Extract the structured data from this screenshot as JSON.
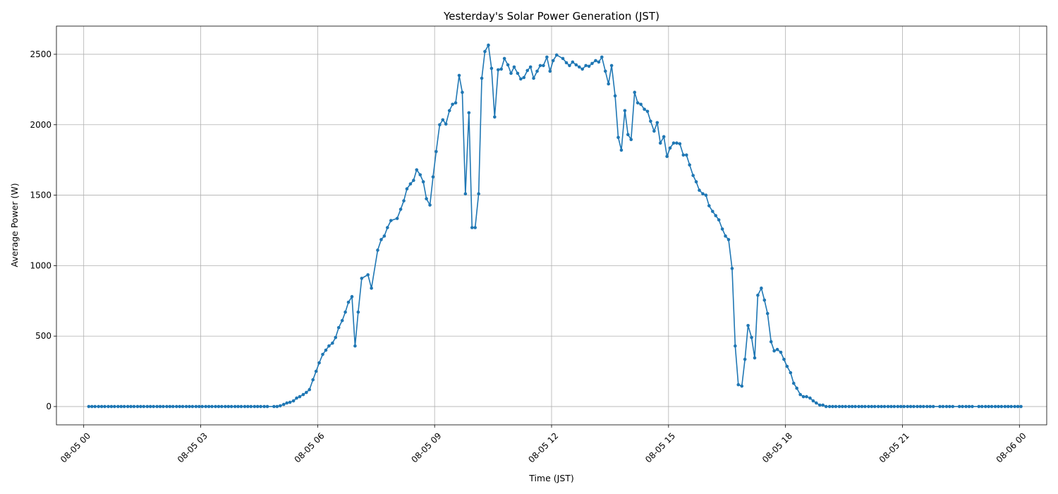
{
  "chart_data": {
    "type": "line",
    "title": "Yesterday's Solar Power Generation (JST)",
    "xlabel": "Time (JST)",
    "ylabel": "Average Power (W)",
    "xlim_hours": [
      -0.7,
      24.7
    ],
    "ylim": [
      -130,
      2700
    ],
    "grid": true,
    "x_ticks": [
      {
        "hours": 0,
        "label": "08-05 00"
      },
      {
        "hours": 3,
        "label": "08-05 03"
      },
      {
        "hours": 6,
        "label": "08-05 06"
      },
      {
        "hours": 9,
        "label": "08-05 09"
      },
      {
        "hours": 12,
        "label": "08-05 12"
      },
      {
        "hours": 15,
        "label": "08-05 15"
      },
      {
        "hours": 18,
        "label": "08-05 18"
      },
      {
        "hours": 21,
        "label": "08-05 21"
      },
      {
        "hours": 24,
        "label": "08-06 00"
      }
    ],
    "y_ticks": [
      0,
      500,
      1000,
      1500,
      2000,
      2500
    ],
    "series": [
      {
        "name": "Average Power (W)",
        "color": "#1f77b4",
        "points": [
          [
            0.13,
            0
          ],
          [
            0.21,
            0
          ],
          [
            0.29,
            0
          ],
          [
            0.38,
            0
          ],
          [
            0.46,
            0
          ],
          [
            0.54,
            0
          ],
          [
            0.63,
            0
          ],
          [
            0.71,
            0
          ],
          [
            0.79,
            0
          ],
          [
            0.88,
            0
          ],
          [
            0.96,
            0
          ],
          [
            1.04,
            0
          ],
          [
            1.13,
            0
          ],
          [
            1.21,
            0
          ],
          [
            1.29,
            0
          ],
          [
            1.38,
            0
          ],
          [
            1.46,
            0
          ],
          [
            1.54,
            0
          ],
          [
            1.63,
            0
          ],
          [
            1.71,
            0
          ],
          [
            1.79,
            0
          ],
          [
            1.88,
            0
          ],
          [
            1.96,
            0
          ],
          [
            2.04,
            0
          ],
          [
            2.13,
            0
          ],
          [
            2.21,
            0
          ],
          [
            2.29,
            0
          ],
          [
            2.38,
            0
          ],
          [
            2.46,
            0
          ],
          [
            2.54,
            0
          ],
          [
            2.63,
            0
          ],
          [
            2.71,
            0
          ],
          [
            2.79,
            0
          ],
          [
            2.88,
            0
          ],
          [
            2.96,
            0
          ],
          [
            3.04,
            0
          ],
          [
            3.13,
            0
          ],
          [
            3.21,
            0
          ],
          [
            3.29,
            0
          ],
          [
            3.38,
            0
          ],
          [
            3.46,
            0
          ],
          [
            3.54,
            0
          ],
          [
            3.63,
            0
          ],
          [
            3.71,
            0
          ],
          [
            3.79,
            0
          ],
          [
            3.88,
            0
          ],
          [
            3.96,
            0
          ],
          [
            4.04,
            0
          ],
          [
            4.13,
            0
          ],
          [
            4.21,
            0
          ],
          [
            4.29,
            0
          ],
          [
            4.38,
            0
          ],
          [
            4.46,
            0
          ],
          [
            4.54,
            0
          ],
          [
            4.63,
            0
          ],
          [
            4.71,
            0
          ],
          [
            4.88,
            0
          ],
          [
            4.96,
            0
          ],
          [
            5.04,
            5
          ],
          [
            5.13,
            15
          ],
          [
            5.21,
            25
          ],
          [
            5.29,
            30
          ],
          [
            5.38,
            40
          ],
          [
            5.46,
            60
          ],
          [
            5.54,
            70
          ],
          [
            5.63,
            85
          ],
          [
            5.71,
            100
          ],
          [
            5.79,
            120
          ],
          [
            5.88,
            190
          ],
          [
            5.96,
            250
          ],
          [
            6.04,
            310
          ],
          [
            6.13,
            370
          ],
          [
            6.21,
            400
          ],
          [
            6.29,
            430
          ],
          [
            6.38,
            450
          ],
          [
            6.46,
            490
          ],
          [
            6.54,
            560
          ],
          [
            6.63,
            610
          ],
          [
            6.71,
            670
          ],
          [
            6.79,
            740
          ],
          [
            6.88,
            780
          ],
          [
            6.96,
            430
          ],
          [
            7.04,
            670
          ],
          [
            7.13,
            910
          ],
          [
            7.29,
            935
          ],
          [
            7.38,
            840
          ],
          [
            7.54,
            1110
          ],
          [
            7.63,
            1185
          ],
          [
            7.71,
            1210
          ],
          [
            7.79,
            1270
          ],
          [
            7.88,
            1320
          ],
          [
            8.04,
            1335
          ],
          [
            8.13,
            1400
          ],
          [
            8.21,
            1460
          ],
          [
            8.29,
            1545
          ],
          [
            8.38,
            1580
          ],
          [
            8.46,
            1605
          ],
          [
            8.54,
            1680
          ],
          [
            8.63,
            1645
          ],
          [
            8.71,
            1595
          ],
          [
            8.79,
            1475
          ],
          [
            8.88,
            1430
          ],
          [
            8.96,
            1630
          ],
          [
            9.04,
            1810
          ],
          [
            9.13,
            2000
          ],
          [
            9.21,
            2035
          ],
          [
            9.29,
            2005
          ],
          [
            9.38,
            2100
          ],
          [
            9.46,
            2145
          ],
          [
            9.54,
            2155
          ],
          [
            9.63,
            2350
          ],
          [
            9.71,
            2230
          ],
          [
            9.79,
            1510
          ],
          [
            9.88,
            2085
          ],
          [
            9.96,
            1270
          ],
          [
            10.04,
            1270
          ],
          [
            10.13,
            1510
          ],
          [
            10.21,
            2330
          ],
          [
            10.29,
            2520
          ],
          [
            10.38,
            2565
          ],
          [
            10.46,
            2400
          ],
          [
            10.54,
            2055
          ],
          [
            10.63,
            2390
          ],
          [
            10.71,
            2395
          ],
          [
            10.79,
            2470
          ],
          [
            10.88,
            2425
          ],
          [
            10.96,
            2365
          ],
          [
            11.04,
            2410
          ],
          [
            11.13,
            2365
          ],
          [
            11.21,
            2325
          ],
          [
            11.29,
            2335
          ],
          [
            11.38,
            2385
          ],
          [
            11.46,
            2410
          ],
          [
            11.54,
            2330
          ],
          [
            11.63,
            2380
          ],
          [
            11.71,
            2420
          ],
          [
            11.79,
            2420
          ],
          [
            11.88,
            2480
          ],
          [
            11.96,
            2380
          ],
          [
            12.04,
            2455
          ],
          [
            12.13,
            2495
          ],
          [
            12.29,
            2470
          ],
          [
            12.38,
            2440
          ],
          [
            12.46,
            2420
          ],
          [
            12.54,
            2445
          ],
          [
            12.63,
            2425
          ],
          [
            12.71,
            2410
          ],
          [
            12.79,
            2395
          ],
          [
            12.88,
            2420
          ],
          [
            12.96,
            2415
          ],
          [
            13.04,
            2435
          ],
          [
            13.13,
            2455
          ],
          [
            13.21,
            2445
          ],
          [
            13.29,
            2480
          ],
          [
            13.38,
            2380
          ],
          [
            13.46,
            2290
          ],
          [
            13.54,
            2420
          ],
          [
            13.63,
            2205
          ],
          [
            13.71,
            1910
          ],
          [
            13.79,
            1820
          ],
          [
            13.88,
            2100
          ],
          [
            13.96,
            1930
          ],
          [
            14.04,
            1895
          ],
          [
            14.13,
            2230
          ],
          [
            14.21,
            2155
          ],
          [
            14.29,
            2145
          ],
          [
            14.38,
            2110
          ],
          [
            14.46,
            2095
          ],
          [
            14.54,
            2025
          ],
          [
            14.63,
            1955
          ],
          [
            14.71,
            2015
          ],
          [
            14.79,
            1870
          ],
          [
            14.88,
            1915
          ],
          [
            14.96,
            1775
          ],
          [
            15.04,
            1835
          ],
          [
            15.13,
            1870
          ],
          [
            15.21,
            1870
          ],
          [
            15.29,
            1865
          ],
          [
            15.38,
            1785
          ],
          [
            15.46,
            1785
          ],
          [
            15.54,
            1715
          ],
          [
            15.63,
            1640
          ],
          [
            15.71,
            1595
          ],
          [
            15.79,
            1535
          ],
          [
            15.88,
            1510
          ],
          [
            15.96,
            1500
          ],
          [
            16.04,
            1425
          ],
          [
            16.13,
            1385
          ],
          [
            16.21,
            1355
          ],
          [
            16.29,
            1325
          ],
          [
            16.38,
            1260
          ],
          [
            16.46,
            1210
          ],
          [
            16.54,
            1185
          ],
          [
            16.63,
            980
          ],
          [
            16.71,
            430
          ],
          [
            16.79,
            155
          ],
          [
            16.88,
            145
          ],
          [
            16.96,
            335
          ],
          [
            17.04,
            575
          ],
          [
            17.13,
            490
          ],
          [
            17.21,
            345
          ],
          [
            17.29,
            790
          ],
          [
            17.38,
            840
          ],
          [
            17.46,
            755
          ],
          [
            17.54,
            660
          ],
          [
            17.63,
            460
          ],
          [
            17.71,
            395
          ],
          [
            17.79,
            405
          ],
          [
            17.88,
            385
          ],
          [
            17.96,
            335
          ],
          [
            18.04,
            285
          ],
          [
            18.13,
            240
          ],
          [
            18.21,
            165
          ],
          [
            18.29,
            130
          ],
          [
            18.38,
            85
          ],
          [
            18.46,
            70
          ],
          [
            18.54,
            70
          ],
          [
            18.63,
            60
          ],
          [
            18.71,
            40
          ],
          [
            18.79,
            25
          ],
          [
            18.88,
            10
          ],
          [
            18.96,
            10
          ],
          [
            19.04,
            0
          ],
          [
            19.13,
            0
          ],
          [
            19.21,
            0
          ],
          [
            19.29,
            0
          ],
          [
            19.38,
            0
          ],
          [
            19.46,
            0
          ],
          [
            19.54,
            0
          ],
          [
            19.63,
            0
          ],
          [
            19.71,
            0
          ],
          [
            19.79,
            0
          ],
          [
            19.88,
            0
          ],
          [
            19.96,
            0
          ],
          [
            20.04,
            0
          ],
          [
            20.13,
            0
          ],
          [
            20.21,
            0
          ],
          [
            20.29,
            0
          ],
          [
            20.38,
            0
          ],
          [
            20.46,
            0
          ],
          [
            20.54,
            0
          ],
          [
            20.63,
            0
          ],
          [
            20.71,
            0
          ],
          [
            20.79,
            0
          ],
          [
            20.88,
            0
          ],
          [
            20.96,
            0
          ],
          [
            21.04,
            0
          ],
          [
            21.13,
            0
          ],
          [
            21.21,
            0
          ],
          [
            21.29,
            0
          ],
          [
            21.38,
            0
          ],
          [
            21.46,
            0
          ],
          [
            21.54,
            0
          ],
          [
            21.63,
            0
          ],
          [
            21.71,
            0
          ],
          [
            21.79,
            0
          ],
          [
            21.96,
            0
          ],
          [
            22.04,
            0
          ],
          [
            22.13,
            0
          ],
          [
            22.21,
            0
          ],
          [
            22.29,
            0
          ],
          [
            22.46,
            0
          ],
          [
            22.54,
            0
          ],
          [
            22.63,
            0
          ],
          [
            22.71,
            0
          ],
          [
            22.79,
            0
          ],
          [
            22.96,
            0
          ],
          [
            23.04,
            0
          ],
          [
            23.13,
            0
          ],
          [
            23.21,
            0
          ],
          [
            23.29,
            0
          ],
          [
            23.38,
            0
          ],
          [
            23.46,
            0
          ],
          [
            23.54,
            0
          ],
          [
            23.63,
            0
          ],
          [
            23.71,
            0
          ],
          [
            23.79,
            0
          ],
          [
            23.88,
            0
          ],
          [
            23.96,
            0
          ],
          [
            24.04,
            0
          ]
        ]
      }
    ]
  }
}
